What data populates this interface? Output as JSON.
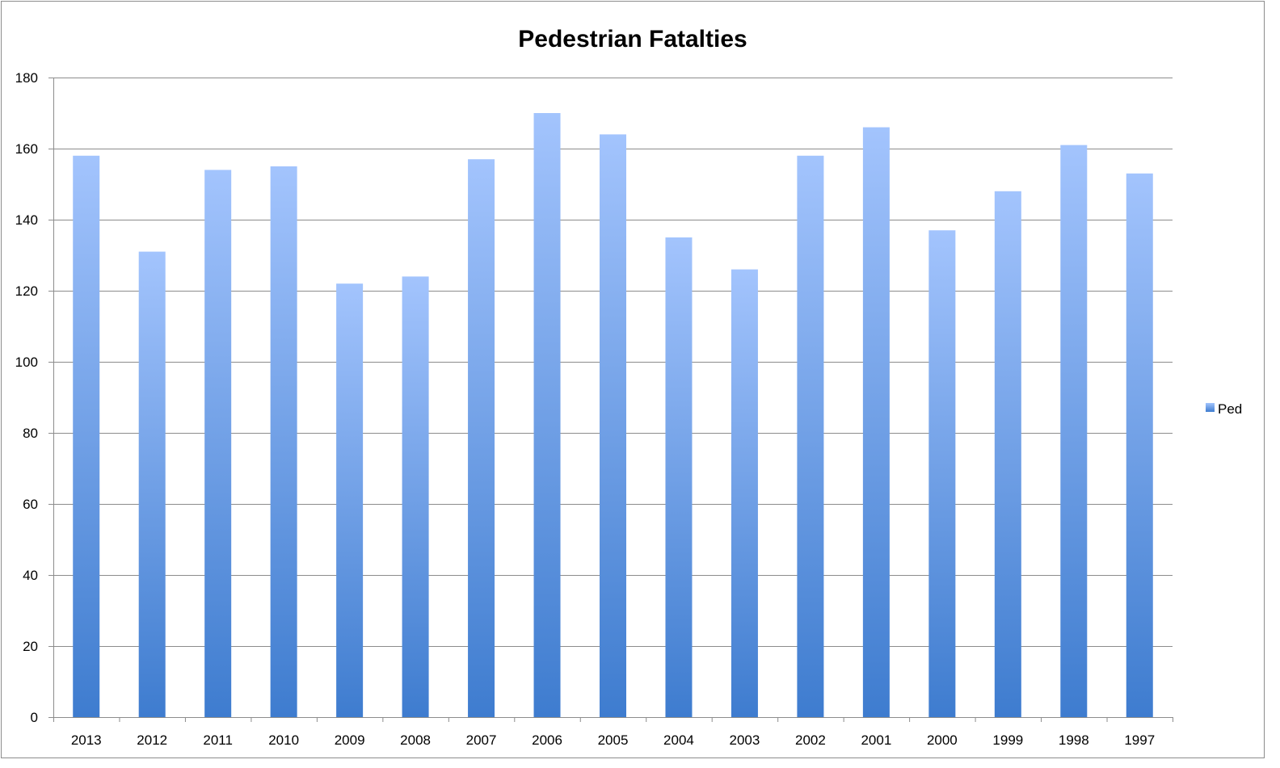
{
  "chart_data": {
    "type": "bar",
    "title": "Pedestrian Fatalties",
    "xlabel": "",
    "ylabel": "",
    "categories": [
      "2013",
      "2012",
      "2011",
      "2010",
      "2009",
      "2008",
      "2007",
      "2006",
      "2005",
      "2004",
      "2003",
      "2002",
      "2001",
      "2000",
      "1999",
      "1998",
      "1997"
    ],
    "series": [
      {
        "name": "Ped",
        "values": [
          158,
          131,
          154,
          155,
          122,
          124,
          157,
          170,
          164,
          135,
          126,
          158,
          166,
          137,
          148,
          161,
          153
        ]
      }
    ],
    "ylim": [
      0,
      180
    ],
    "yticks": [
      0,
      20,
      40,
      60,
      80,
      100,
      120,
      140,
      160,
      180
    ],
    "grid": true,
    "legend_position": "right",
    "colors": {
      "bar_top": "#a3c4fd",
      "bar_bottom": "#3e7ccf",
      "grid": "#8c8c8c",
      "axis": "#8c8c8c"
    }
  }
}
